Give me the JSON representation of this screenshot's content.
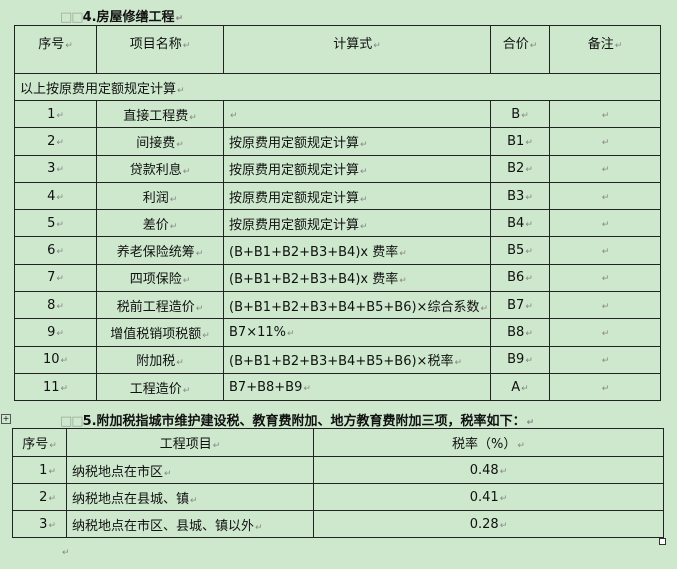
{
  "section4": {
    "title": "4.房屋修缮工程",
    "headers": [
      "序号",
      "项目名称",
      "计算式",
      "合价",
      "备注"
    ],
    "note_row": "以上按原费用定额规定计算",
    "rows": [
      {
        "no": "1",
        "name": "直接工程费",
        "formula": "",
        "total": "B",
        "remark": ""
      },
      {
        "no": "2",
        "name": "间接费",
        "formula": "按原费用定额规定计算",
        "total": "B1",
        "remark": ""
      },
      {
        "no": "3",
        "name": "贷款利息",
        "formula": "按原费用定额规定计算",
        "total": "B2",
        "remark": ""
      },
      {
        "no": "4",
        "name": "利润",
        "formula": "按原费用定额规定计算",
        "total": "B3",
        "remark": ""
      },
      {
        "no": "5",
        "name": "差价",
        "formula": "按原费用定额规定计算",
        "total": "B4",
        "remark": ""
      },
      {
        "no": "6",
        "name": "养老保险统筹",
        "formula": "(B+B1+B2+B3+B4)x 费率",
        "total": "B5",
        "remark": ""
      },
      {
        "no": "7",
        "name": "四项保险",
        "formula": "(B+B1+B2+B3+B4)x 费率",
        "total": "B6",
        "remark": ""
      },
      {
        "no": "8",
        "name": "税前工程造价",
        "formula": "(B+B1+B2+B3+B4+B5+B6)×综合系数",
        "total": "B7",
        "remark": ""
      },
      {
        "no": "9",
        "name": "增值税销项税额",
        "formula": "B7×11%",
        "total": "B8",
        "remark": ""
      },
      {
        "no": "10",
        "name": "附加税",
        "formula": "(B+B1+B2+B3+B4+B5+B6)×税率",
        "total": "B9",
        "remark": ""
      },
      {
        "no": "11",
        "name": "工程造价",
        "formula": "B7+B8+B9",
        "total": "A",
        "remark": ""
      }
    ]
  },
  "section5": {
    "title": "5.附加税指城市维护建设税、教育费附加、地方教育费附加三项，税率如下：",
    "headers": [
      "序号",
      "工程项目",
      "税率（%）"
    ],
    "rows": [
      {
        "no": "1",
        "item": "纳税地点在市区",
        "rate": "0.48"
      },
      {
        "no": "2",
        "item": "纳税地点在县城、镇",
        "rate": "0.41"
      },
      {
        "no": "3",
        "item": "纳税地点在市区、县城、镇以外",
        "rate": "0.28"
      }
    ]
  }
}
